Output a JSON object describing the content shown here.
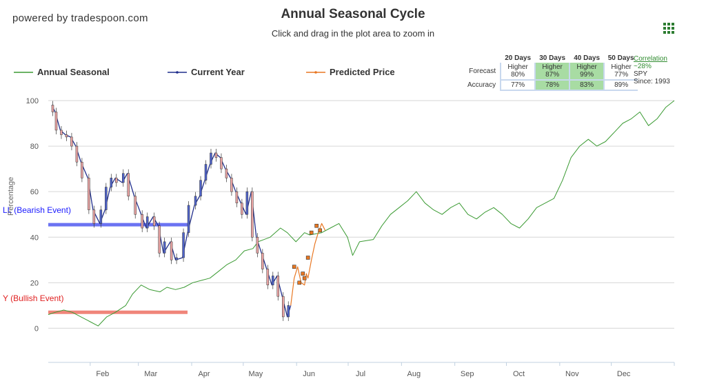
{
  "brand": "powered by tradespoon.com",
  "title": "Annual Seasonal Cycle",
  "subtitle": "Click and drag in the plot area to zoom in",
  "menu_icon": "grid-menu-icon",
  "legend": [
    {
      "label": "Annual Seasonal",
      "color": "#3a9a32"
    },
    {
      "label": "Current Year",
      "color": "#1f2d8c"
    },
    {
      "label": "Predicted Price",
      "color": "#e87722"
    }
  ],
  "stats": {
    "headers": [
      "20 Days",
      "30 Days",
      "40 Days",
      "50 Days"
    ],
    "forecast_label": "Forecast",
    "accuracy_label": "Accuracy",
    "forecast_dir": [
      "Higher",
      "Higher",
      "Higher",
      "Higher"
    ],
    "forecast_pct": [
      "80%",
      "87%",
      "99%",
      "77%"
    ],
    "accuracy": [
      "77%",
      "78%",
      "83%",
      "89%"
    ],
    "highlight": [
      false,
      true,
      true,
      false
    ]
  },
  "correlation": {
    "label": "Correlation",
    "value": "~28%",
    "symbol": "SPY",
    "since": "Since: 1993"
  },
  "events": {
    "bearish": {
      "label": "LL (Bearish Event)",
      "value": 45.5,
      "color": "#6b73f2"
    },
    "bullish": {
      "label": "Y (Bullish Event)",
      "value": 7,
      "color": "#f0857a"
    }
  },
  "chart_data": {
    "type": "line",
    "ylabel": "Percentage",
    "ylim": [
      -15,
      100
    ],
    "yticks": [
      0,
      20,
      40,
      60,
      80,
      100
    ],
    "months": [
      "Feb",
      "Mar",
      "Apr",
      "May",
      "Jun",
      "Jul",
      "Aug",
      "Sep",
      "Oct",
      "Nov",
      "Dec"
    ],
    "month_days": [
      31,
      59,
      90,
      120,
      151,
      181,
      212,
      243,
      273,
      304,
      334
    ],
    "grid": true,
    "series": [
      {
        "name": "Annual Seasonal",
        "x": [
          1,
          5,
          10,
          15,
          20,
          25,
          30,
          35,
          40,
          46,
          50,
          55,
          60,
          66,
          70,
          75,
          80,
          85,
          90,
          95,
          100,
          105,
          110,
          115,
          120,
          123,
          130,
          136,
          140,
          145,
          150,
          153,
          160,
          165,
          170,
          175,
          178,
          182,
          190,
          195,
          200,
          205,
          210,
          215,
          220,
          225,
          230,
          235,
          240,
          245,
          250,
          255,
          260,
          265,
          270,
          275,
          280,
          285,
          290,
          295,
          300,
          305,
          310,
          315,
          320,
          325,
          330,
          335,
          340,
          345,
          350,
          355,
          360,
          365
        ],
        "y": [
          6,
          7,
          8,
          7,
          5,
          3,
          1,
          5,
          7,
          10,
          15,
          19,
          17,
          16,
          18,
          17,
          18,
          20,
          21,
          22,
          25,
          28,
          30,
          34,
          35,
          38,
          40,
          44,
          42,
          38,
          42,
          41,
          42,
          44,
          46,
          40,
          32,
          38,
          39,
          45,
          50,
          53,
          56,
          60,
          55,
          52,
          50,
          53,
          55,
          50,
          48,
          51,
          53,
          50,
          46,
          44,
          48,
          53,
          55,
          57,
          65,
          75,
          80,
          83,
          80,
          82,
          86,
          90,
          92,
          95,
          89,
          92,
          97,
          100
        ]
      },
      {
        "name": "Current Year",
        "x": [
          3,
          5,
          8,
          11,
          14,
          17,
          20,
          24,
          27,
          31,
          34,
          37,
          40,
          44,
          47,
          51,
          55,
          58,
          62,
          65,
          68,
          72,
          75,
          79,
          82,
          86,
          89,
          92,
          95,
          98,
          101,
          104,
          107,
          110,
          113,
          116,
          119,
          122,
          125,
          128,
          131,
          134,
          137,
          140,
          142
        ],
        "y": [
          98,
          95,
          87,
          85,
          84,
          80,
          73,
          66,
          52,
          46,
          52,
          62,
          66,
          64,
          68,
          58,
          50,
          44,
          49,
          45,
          33,
          38,
          30,
          31,
          42,
          54,
          58,
          65,
          72,
          77,
          75,
          70,
          66,
          60,
          55,
          50,
          60,
          40,
          33,
          26,
          19,
          23,
          14,
          5,
          10
        ]
      },
      {
        "name": "Predicted Price",
        "x": [
          142,
          144,
          146,
          148,
          150,
          151,
          152,
          154,
          156,
          158,
          160,
          162
        ],
        "y": [
          10,
          22,
          27,
          20,
          19,
          24,
          22,
          30,
          37,
          42,
          46,
          43
        ]
      }
    ],
    "markers_predicted": [
      {
        "x": 144,
        "y": 27
      },
      {
        "x": 147,
        "y": 20
      },
      {
        "x": 149,
        "y": 24
      },
      {
        "x": 150,
        "y": 22
      },
      {
        "x": 152,
        "y": 31
      },
      {
        "x": 154,
        "y": 42
      },
      {
        "x": 157,
        "y": 45
      },
      {
        "x": 159,
        "y": 43
      }
    ]
  }
}
